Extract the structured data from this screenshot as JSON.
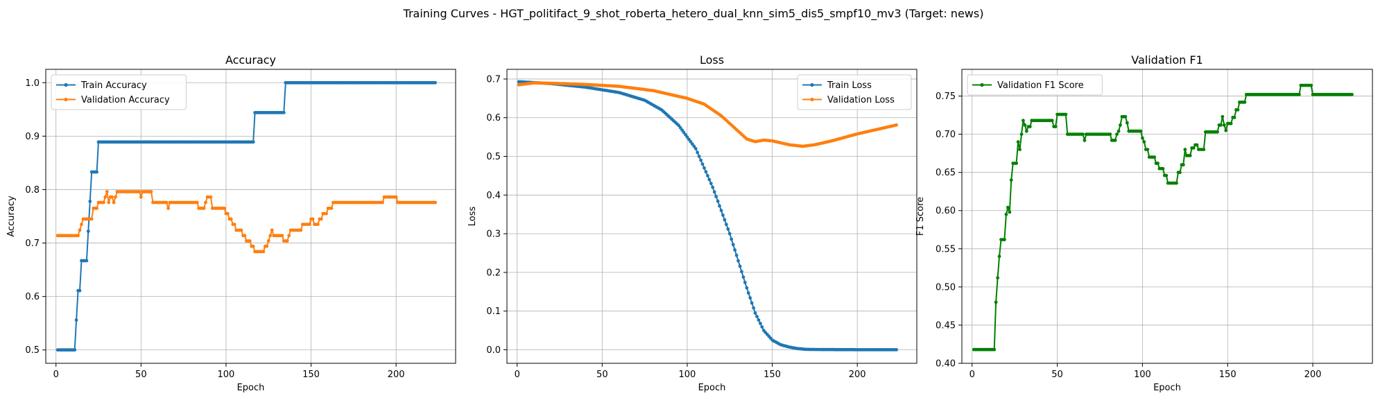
{
  "figure": {
    "suptitle": "Training Curves - HGT_politifact_9_shot_roberta_hetero_dual_knn_sim5_dis5_smpf10_mv3 (Target: news)"
  },
  "colors": {
    "blue": "#1f77b4",
    "orange": "#ff7f0e",
    "green": "#008000",
    "grid": "#b0b0b0"
  },
  "chart_data": [
    {
      "type": "line",
      "title": "Accuracy",
      "xlabel": "Epoch",
      "ylabel": "Accuracy",
      "xlim": [
        -6,
        235
      ],
      "ylim": [
        0.475,
        1.025
      ],
      "xticks": [
        0,
        50,
        100,
        150,
        200
      ],
      "yticks": [
        0.5,
        0.6,
        0.7,
        0.8,
        0.9,
        1.0
      ],
      "ytick_labels": [
        "0.5",
        "0.6",
        "0.7",
        "0.8",
        "0.9",
        "1.0"
      ],
      "grid": true,
      "legend_loc": "upper left",
      "series": [
        {
          "name": "Train Accuracy",
          "color": "#1f77b4",
          "steps": [
            [
              1,
              0.5
            ],
            [
              12,
              0.556
            ],
            [
              13,
              0.611
            ],
            [
              15,
              0.667
            ],
            [
              19,
              0.722
            ],
            [
              20,
              0.778
            ],
            [
              21,
              0.833
            ],
            [
              25,
              0.889
            ],
            [
              117,
              0.944
            ],
            [
              135,
              1.0
            ],
            [
              223,
              1.0
            ]
          ]
        },
        {
          "name": "Validation Accuracy",
          "color": "#ff7f0e",
          "steps": [
            [
              1,
              0.714
            ],
            [
              14,
              0.724
            ],
            [
              15,
              0.735
            ],
            [
              16,
              0.745
            ],
            [
              22,
              0.765
            ],
            [
              25,
              0.776
            ],
            [
              29,
              0.786
            ],
            [
              30,
              0.796
            ],
            [
              31,
              0.776
            ],
            [
              32,
              0.786
            ],
            [
              34,
              0.776
            ],
            [
              35,
              0.786
            ],
            [
              36,
              0.796
            ],
            [
              50,
              0.786
            ],
            [
              51,
              0.796
            ],
            [
              57,
              0.776
            ],
            [
              66,
              0.765
            ],
            [
              67,
              0.776
            ],
            [
              84,
              0.765
            ],
            [
              88,
              0.776
            ],
            [
              89,
              0.786
            ],
            [
              92,
              0.765
            ],
            [
              100,
              0.755
            ],
            [
              102,
              0.745
            ],
            [
              104,
              0.735
            ],
            [
              106,
              0.724
            ],
            [
              110,
              0.714
            ],
            [
              112,
              0.704
            ],
            [
              115,
              0.694
            ],
            [
              117,
              0.684
            ],
            [
              123,
              0.694
            ],
            [
              125,
              0.704
            ],
            [
              126,
              0.714
            ],
            [
              127,
              0.724
            ],
            [
              128,
              0.714
            ],
            [
              134,
              0.704
            ],
            [
              137,
              0.714
            ],
            [
              138,
              0.724
            ],
            [
              145,
              0.735
            ],
            [
              150,
              0.745
            ],
            [
              152,
              0.735
            ],
            [
              155,
              0.745
            ],
            [
              157,
              0.755
            ],
            [
              160,
              0.765
            ],
            [
              163,
              0.776
            ],
            [
              193,
              0.786
            ],
            [
              201,
              0.776
            ],
            [
              223,
              0.776
            ]
          ]
        }
      ]
    },
    {
      "type": "line",
      "title": "Loss",
      "xlabel": "Epoch",
      "ylabel": "Loss",
      "xlim": [
        -6,
        235
      ],
      "ylim": [
        -0.035,
        0.725
      ],
      "xticks": [
        0,
        50,
        100,
        150,
        200
      ],
      "yticks": [
        0.0,
        0.1,
        0.2,
        0.3,
        0.4,
        0.5,
        0.6,
        0.7
      ],
      "ytick_labels": [
        "0.0",
        "0.1",
        "0.2",
        "0.3",
        "0.4",
        "0.5",
        "0.6",
        "0.7"
      ],
      "grid": true,
      "legend_loc": "upper right",
      "series": [
        {
          "name": "Train Loss",
          "color": "#1f77b4",
          "points": [
            [
              1,
              0.693
            ],
            [
              20,
              0.688
            ],
            [
              40,
              0.679
            ],
            [
              60,
              0.665
            ],
            [
              75,
              0.645
            ],
            [
              85,
              0.62
            ],
            [
              95,
              0.58
            ],
            [
              105,
              0.52
            ],
            [
              115,
              0.42
            ],
            [
              125,
              0.3
            ],
            [
              130,
              0.23
            ],
            [
              135,
              0.16
            ],
            [
              140,
              0.095
            ],
            [
              145,
              0.05
            ],
            [
              150,
              0.025
            ],
            [
              155,
              0.013
            ],
            [
              160,
              0.007
            ],
            [
              165,
              0.003
            ],
            [
              170,
              0.001
            ],
            [
              180,
              0.0005
            ],
            [
              200,
              0.0002
            ],
            [
              223,
              0.0001
            ]
          ]
        },
        {
          "name": "Validation Loss",
          "color": "#ff7f0e",
          "points": [
            [
              1,
              0.685
            ],
            [
              10,
              0.69
            ],
            [
              20,
              0.689
            ],
            [
              40,
              0.686
            ],
            [
              60,
              0.681
            ],
            [
              80,
              0.67
            ],
            [
              100,
              0.65
            ],
            [
              110,
              0.635
            ],
            [
              120,
              0.605
            ],
            [
              130,
              0.565
            ],
            [
              135,
              0.545
            ],
            [
              140,
              0.538
            ],
            [
              145,
              0.542
            ],
            [
              150,
              0.54
            ],
            [
              160,
              0.53
            ],
            [
              168,
              0.526
            ],
            [
              175,
              0.53
            ],
            [
              185,
              0.54
            ],
            [
              200,
              0.558
            ],
            [
              215,
              0.573
            ],
            [
              223,
              0.581
            ]
          ]
        }
      ]
    },
    {
      "type": "line",
      "title": "Validation F1",
      "xlabel": "Epoch",
      "ylabel": "F1 Score",
      "xlim": [
        -6,
        235
      ],
      "ylim": [
        0.4,
        0.785
      ],
      "xticks": [
        0,
        50,
        100,
        150,
        200
      ],
      "yticks": [
        0.4,
        0.45,
        0.5,
        0.55,
        0.6,
        0.65,
        0.7,
        0.75
      ],
      "ytick_labels": [
        "0.40",
        "0.45",
        "0.50",
        "0.55",
        "0.60",
        "0.65",
        "0.70",
        "0.75"
      ],
      "grid": true,
      "legend_loc": "upper left",
      "series": [
        {
          "name": "Validation F1 Score",
          "color": "#008000",
          "steps": [
            [
              1,
              0.418
            ],
            [
              14,
              0.48
            ],
            [
              15,
              0.512
            ],
            [
              16,
              0.54
            ],
            [
              17,
              0.562
            ],
            [
              20,
              0.595
            ],
            [
              21,
              0.604
            ],
            [
              22,
              0.598
            ],
            [
              23,
              0.64
            ],
            [
              24,
              0.662
            ],
            [
              27,
              0.69
            ],
            [
              28,
              0.68
            ],
            [
              29,
              0.7
            ],
            [
              30,
              0.718
            ],
            [
              31,
              0.712
            ],
            [
              32,
              0.704
            ],
            [
              33,
              0.71
            ],
            [
              35,
              0.718
            ],
            [
              48,
              0.71
            ],
            [
              50,
              0.726
            ],
            [
              56,
              0.7
            ],
            [
              66,
              0.692
            ],
            [
              67,
              0.7
            ],
            [
              82,
              0.692
            ],
            [
              85,
              0.7
            ],
            [
              86,
              0.704
            ],
            [
              87,
              0.712
            ],
            [
              88,
              0.723
            ],
            [
              91,
              0.715
            ],
            [
              92,
              0.704
            ],
            [
              100,
              0.695
            ],
            [
              101,
              0.69
            ],
            [
              102,
              0.68
            ],
            [
              104,
              0.67
            ],
            [
              108,
              0.662
            ],
            [
              110,
              0.655
            ],
            [
              113,
              0.646
            ],
            [
              115,
              0.636
            ],
            [
              121,
              0.65
            ],
            [
              123,
              0.66
            ],
            [
              125,
              0.68
            ],
            [
              126,
              0.672
            ],
            [
              129,
              0.682
            ],
            [
              131,
              0.686
            ],
            [
              133,
              0.68
            ],
            [
              137,
              0.703
            ],
            [
              145,
              0.712
            ],
            [
              147,
              0.723
            ],
            [
              148,
              0.712
            ],
            [
              149,
              0.705
            ],
            [
              150,
              0.714
            ],
            [
              153,
              0.722
            ],
            [
              155,
              0.732
            ],
            [
              157,
              0.742
            ],
            [
              161,
              0.752
            ],
            [
              193,
              0.764
            ],
            [
              200,
              0.752
            ],
            [
              223,
              0.752
            ]
          ]
        }
      ]
    }
  ]
}
